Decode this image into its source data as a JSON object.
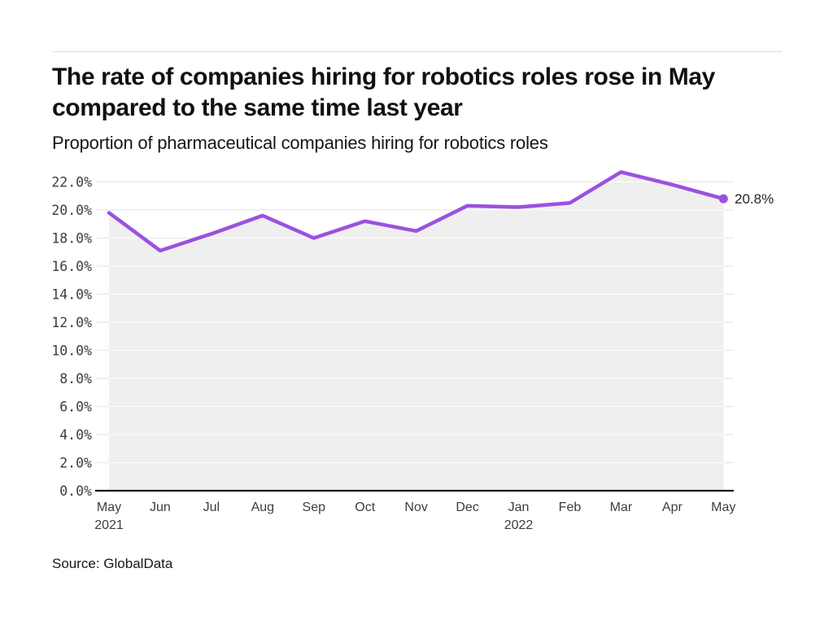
{
  "page": {
    "title_line1": "The rate of companies hiring for robotics roles rose in May",
    "title_line2": "compared to the same time last year",
    "subtitle": "Proportion of pharmaceutical companies hiring for robotics roles",
    "source": "Source: GlobalData"
  },
  "colors": {
    "line": "#9B51E0",
    "area_fill": "#EFEFEF",
    "axis": "#1A1A1A",
    "gridline": "#E8E8E8",
    "gridline_on_area": "rgba(255,255,255,0.8)",
    "tick_text": "#3D3D3D",
    "end_label_text": "#262626",
    "rule": "#DCDCDC"
  },
  "chart_data": {
    "type": "line",
    "title": "The rate of companies hiring for robotics roles rose in May compared to the same time last year",
    "subtitle": "Proportion of pharmaceutical companies hiring for robotics roles",
    "categories": [
      "May",
      "Jun",
      "Jul",
      "Aug",
      "Sep",
      "Oct",
      "Nov",
      "Dec",
      "Jan",
      "Feb",
      "Mar",
      "Apr",
      "May"
    ],
    "year_labels": {
      "0": "2021",
      "8": "2022"
    },
    "series": [
      {
        "name": "Proportion of pharmaceutical companies hiring for robotics roles",
        "values": [
          19.8,
          17.1,
          18.3,
          19.6,
          18.0,
          19.2,
          18.5,
          20.3,
          20.2,
          20.5,
          22.7,
          21.8,
          20.8
        ]
      }
    ],
    "end_label": "20.8%",
    "ylim": [
      0,
      22
    ],
    "ytick_step": 2,
    "ytick_format": "percent_1dp",
    "grid": true,
    "legend": "none",
    "source": "Source: GlobalData"
  }
}
